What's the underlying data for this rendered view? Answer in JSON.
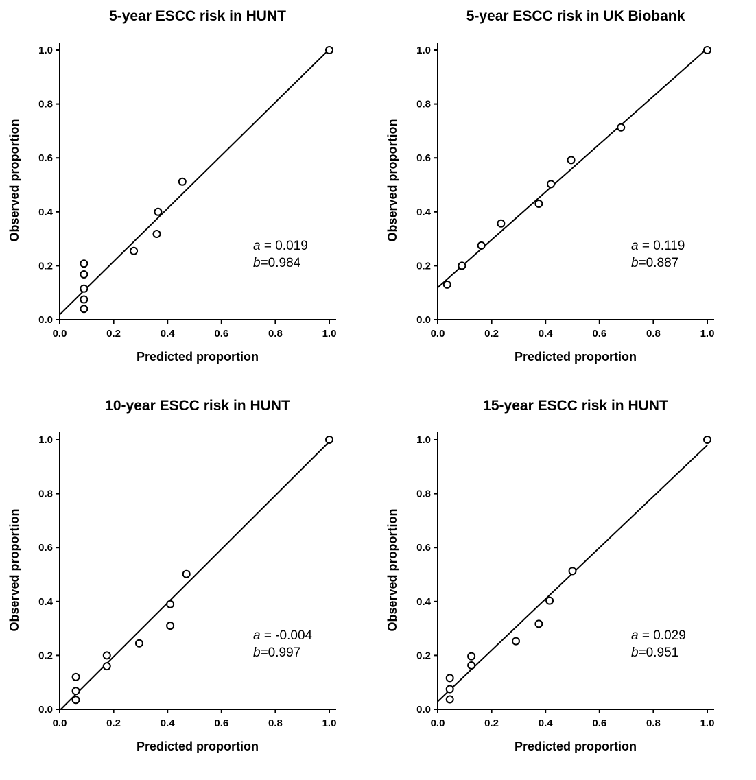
{
  "chart_data": [
    {
      "type": "scatter",
      "title": "5-year ESCC risk in HUNT",
      "xlabel": "Predicted proportion",
      "ylabel": "Observed proportion",
      "xlim": [
        0,
        1
      ],
      "ylim": [
        0,
        1
      ],
      "x_ticks": [
        "0.0",
        "0.2",
        "0.4",
        "0.6",
        "0.8",
        "1.0"
      ],
      "y_ticks": [
        "0.0",
        "0.2",
        "0.4",
        "0.6",
        "0.8",
        "1.0"
      ],
      "grid": false,
      "series": [
        {
          "x": [
            0.09,
            0.09,
            0.09,
            0.09,
            0.09,
            0.275,
            0.36,
            0.365,
            0.455,
            1.0
          ],
          "y": [
            0.04,
            0.075,
            0.115,
            0.168,
            0.208,
            0.255,
            0.318,
            0.4,
            0.512,
            1.0
          ]
        }
      ],
      "fit_line": {
        "intercept": 0.019,
        "slope": 0.984
      },
      "annotation": {
        "a_var": "a",
        "a_text": " = 0.019",
        "b_var": "b",
        "b_text": "=0.984"
      }
    },
    {
      "type": "scatter",
      "title": "5-year ESCC risk in UK Biobank",
      "xlabel": "Predicted proportion",
      "ylabel": "Observed proportion",
      "xlim": [
        0,
        1
      ],
      "ylim": [
        0,
        1
      ],
      "x_ticks": [
        "0.0",
        "0.2",
        "0.4",
        "0.6",
        "0.8",
        "1.0"
      ],
      "y_ticks": [
        "0.0",
        "0.2",
        "0.4",
        "0.6",
        "0.8",
        "1.0"
      ],
      "grid": false,
      "series": [
        {
          "x": [
            0.035,
            0.09,
            0.162,
            0.235,
            0.375,
            0.42,
            0.495,
            0.68,
            1.0
          ],
          "y": [
            0.13,
            0.2,
            0.275,
            0.357,
            0.43,
            0.503,
            0.592,
            0.713,
            1.0
          ]
        }
      ],
      "fit_line": {
        "intercept": 0.119,
        "slope": 0.887
      },
      "annotation": {
        "a_var": "a",
        "a_text": " = 0.119",
        "b_var": "b",
        "b_text": "=0.887"
      }
    },
    {
      "type": "scatter",
      "title": "10-year ESCC risk in HUNT",
      "xlabel": "Predicted proportion",
      "ylabel": "Observed proportion",
      "xlim": [
        0,
        1
      ],
      "ylim": [
        0,
        1
      ],
      "x_ticks": [
        "0.0",
        "0.2",
        "0.4",
        "0.6",
        "0.8",
        "1.0"
      ],
      "y_ticks": [
        "0.0",
        "0.2",
        "0.4",
        "0.6",
        "0.8",
        "1.0"
      ],
      "grid": false,
      "series": [
        {
          "x": [
            0.06,
            0.06,
            0.06,
            0.175,
            0.175,
            0.295,
            0.41,
            0.41,
            0.47,
            1.0
          ],
          "y": [
            0.035,
            0.068,
            0.12,
            0.16,
            0.2,
            0.245,
            0.31,
            0.39,
            0.502,
            1.0
          ]
        }
      ],
      "fit_line": {
        "intercept": -0.004,
        "slope": 0.997
      },
      "annotation": {
        "a_var": "a",
        "a_text": " = -0.004",
        "b_var": "b",
        "b_text": "=0.997"
      }
    },
    {
      "type": "scatter",
      "title": "15-year ESCC risk in HUNT",
      "xlabel": "Predicted proportion",
      "ylabel": "Observed proportion",
      "xlim": [
        0,
        1
      ],
      "ylim": [
        0,
        1
      ],
      "x_ticks": [
        "0.0",
        "0.2",
        "0.4",
        "0.6",
        "0.8",
        "1.0"
      ],
      "y_ticks": [
        "0.0",
        "0.2",
        "0.4",
        "0.6",
        "0.8",
        "1.0"
      ],
      "grid": false,
      "series": [
        {
          "x": [
            0.045,
            0.045,
            0.045,
            0.125,
            0.125,
            0.29,
            0.375,
            0.415,
            0.5,
            1.0
          ],
          "y": [
            0.037,
            0.075,
            0.116,
            0.163,
            0.197,
            0.253,
            0.317,
            0.403,
            0.513,
            1.0
          ]
        }
      ],
      "fit_line": {
        "intercept": 0.029,
        "slope": 0.951
      },
      "annotation": {
        "a_var": "a",
        "a_text": " = 0.029",
        "b_var": "b",
        "b_text": "=0.951"
      }
    }
  ]
}
